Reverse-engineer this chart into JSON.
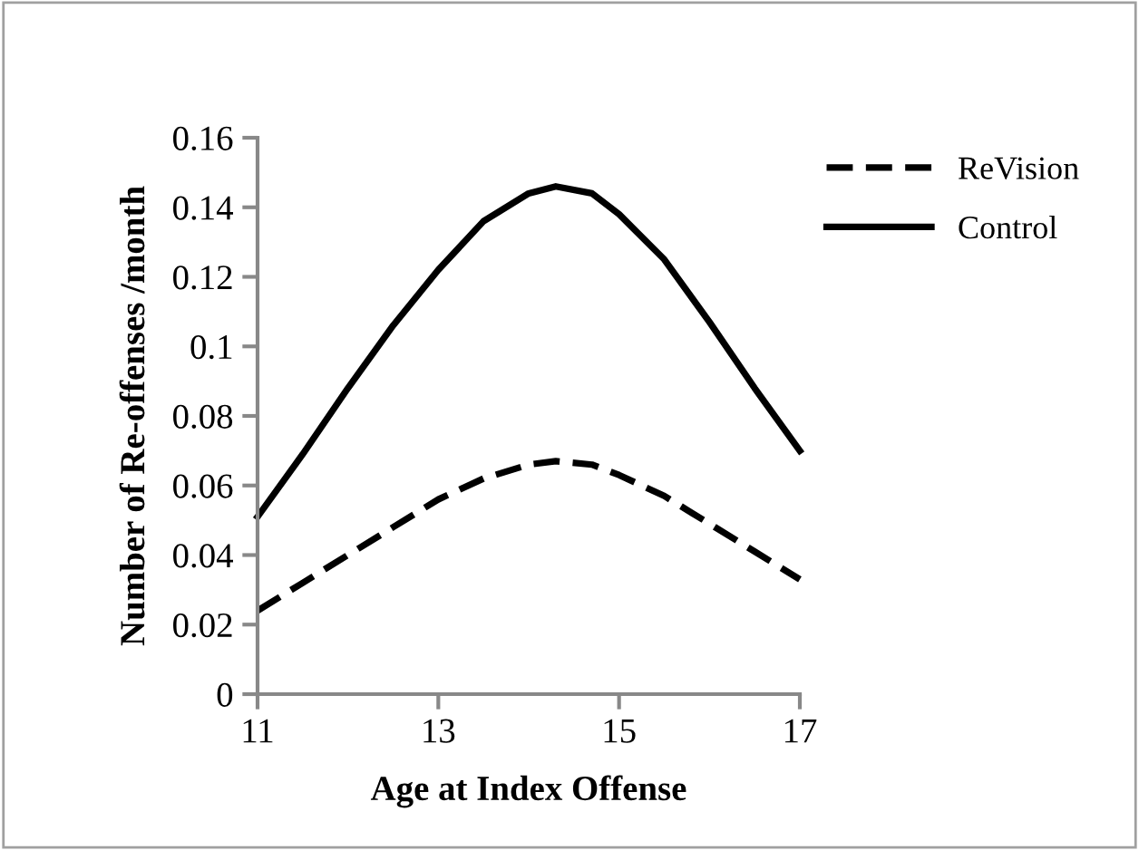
{
  "chart_data": {
    "type": "line",
    "xlabel": "Age at Index Offense",
    "ylabel": "Number of Re-offenses /month",
    "xlim": [
      11,
      17
    ],
    "xticks": [
      11,
      13,
      15,
      17
    ],
    "ylim": [
      0,
      0.16
    ],
    "yticks": [
      0,
      0.02,
      0.04,
      0.06,
      0.08,
      0.1,
      0.12,
      0.14,
      0.16
    ],
    "grid": false,
    "legend": "top right",
    "marker": "none",
    "series": [
      {
        "name": "ReVision",
        "color": "#000000",
        "line_style": "dashed",
        "x": [
          11,
          11.5,
          12,
          12.5,
          13,
          13.5,
          14,
          14.3,
          14.7,
          15,
          15.5,
          16,
          16.5,
          17
        ],
        "values": [
          0.024,
          0.032,
          0.04,
          0.048,
          0.056,
          0.062,
          0.066,
          0.067,
          0.066,
          0.063,
          0.057,
          0.049,
          0.041,
          0.033
        ]
      },
      {
        "name": "Control",
        "color": "#000000",
        "line_style": "solid",
        "x": [
          11,
          11.5,
          12,
          12.5,
          13,
          13.5,
          14,
          14.3,
          14.7,
          15,
          15.5,
          16,
          16.5,
          17
        ],
        "values": [
          0.051,
          0.069,
          0.088,
          0.106,
          0.122,
          0.136,
          0.144,
          0.146,
          0.144,
          0.138,
          0.125,
          0.107,
          0.088,
          0.07
        ]
      }
    ]
  }
}
